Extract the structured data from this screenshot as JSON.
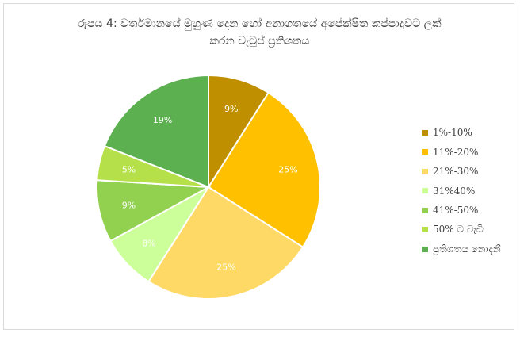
{
  "chart_data": {
    "type": "pie",
    "title_lines": [
      "රූපය 4: වර්තමානයේ මුහුණ දෙන හෝ අනාගතයේ අපේක්ෂිත කප්පාදුවට ලක්",
      "කරන වැටුප් ප්‍රතිශතය"
    ],
    "categories": [
      "1%-10%",
      "11%-20%",
      "21%-30%",
      "31%40%",
      "41%-50%",
      "50% ට වැඩි",
      "ප්‍රතිශතය නොදනී"
    ],
    "values": [
      9,
      25,
      25,
      8,
      9,
      5,
      19
    ],
    "data_labels": [
      "9%",
      "25%",
      "25%",
      "8%",
      "9%",
      "5%",
      "19%"
    ],
    "colors": [
      "#bf8f00",
      "#ffc000",
      "#ffd966",
      "#ccff99",
      "#92d050",
      "#b5e04a",
      "#5cb050"
    ],
    "legend_position": "right",
    "start_angle": "12 o'clock",
    "direction": "clockwise"
  }
}
